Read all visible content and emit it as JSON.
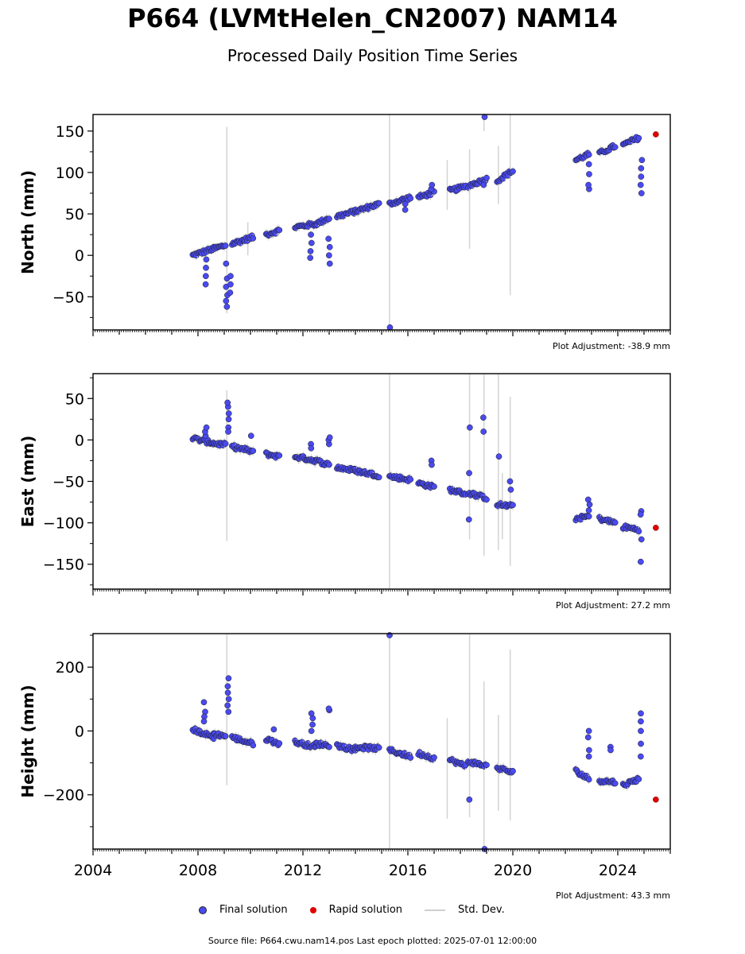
{
  "title": "P664 (LVMtHelen_CN2007) NAM14",
  "subtitle": "Processed Daily Position Time Series",
  "legend": {
    "final": "Final solution",
    "rapid": "Rapid solution",
    "std": "Std. Dev."
  },
  "footer": "Source file: P664.cwu.nam14.pos  Last epoch plotted: 2025-07-01 12:00:00",
  "colors": {
    "final": "#4a4af0",
    "rapid": "#e00000",
    "std_dev": "#d3d3d3"
  },
  "chart_data": [
    {
      "type": "scatter",
      "ylabel": "North (mm)",
      "adjustment": "Plot Adjustment: -38.9 mm",
      "xlim": [
        2004.0,
        2026.0
      ],
      "ylim": [
        -90,
        170
      ],
      "yticks": [
        -50,
        0,
        50,
        100,
        150
      ],
      "yticklabels": [
        "−50",
        "0",
        "50",
        "100",
        "150"
      ],
      "segments": [
        {
          "x": [
            2007.8,
            2008.6
          ],
          "y": [
            0,
            8
          ]
        },
        {
          "x": [
            2008.6,
            2009.05
          ],
          "y": [
            8,
            12
          ]
        },
        {
          "x": [
            2009.3,
            2010.1
          ],
          "y": [
            14,
            22
          ]
        },
        {
          "x": [
            2010.6,
            2011.1
          ],
          "y": [
            25,
            30
          ]
        },
        {
          "x": [
            2011.7,
            2012.5
          ],
          "y": [
            34,
            38
          ]
        },
        {
          "x": [
            2012.5,
            2013.0
          ],
          "y": [
            38,
            45
          ]
        },
        {
          "x": [
            2013.3,
            2014.0
          ],
          "y": [
            47,
            53
          ]
        },
        {
          "x": [
            2014.0,
            2014.9
          ],
          "y": [
            53,
            62
          ]
        },
        {
          "x": [
            2015.3,
            2016.1
          ],
          "y": [
            62,
            70
          ]
        },
        {
          "x": [
            2016.4,
            2017.0
          ],
          "y": [
            70,
            76
          ]
        },
        {
          "x": [
            2017.6,
            2018.2
          ],
          "y": [
            78,
            83
          ]
        },
        {
          "x": [
            2018.3,
            2019.0
          ],
          "y": [
            84,
            92
          ]
        },
        {
          "x": [
            2019.4,
            2020.0
          ],
          "y": [
            90,
            102
          ]
        },
        {
          "x": [
            2022.4,
            2022.9
          ],
          "y": [
            115,
            122
          ]
        },
        {
          "x": [
            2023.3,
            2023.9
          ],
          "y": [
            123,
            132
          ]
        },
        {
          "x": [
            2024.2,
            2024.8
          ],
          "y": [
            133,
            142
          ]
        }
      ],
      "outliers": [
        {
          "x": 2008.3,
          "y": [
            -35,
            -25,
            -15,
            -5
          ]
        },
        {
          "x": 2009.1,
          "y": [
            -62,
            -55,
            -48,
            -38,
            -28,
            -10
          ]
        },
        {
          "x": 2009.25,
          "y": [
            -25,
            -35,
            -45
          ]
        },
        {
          "x": 2012.3,
          "y": [
            -3,
            5,
            15,
            25
          ]
        },
        {
          "x": 2013.0,
          "y": [
            -10,
            0,
            10,
            20
          ]
        },
        {
          "x": 2015.3,
          "y": [
            -87
          ]
        },
        {
          "x": 2015.9,
          "y": [
            55,
            62
          ]
        },
        {
          "x": 2016.9,
          "y": [
            80,
            85
          ]
        },
        {
          "x": 2018.9,
          "y": [
            167,
            85
          ]
        },
        {
          "x": 2022.9,
          "y": [
            80,
            85,
            98,
            110
          ]
        },
        {
          "x": 2024.9,
          "y": [
            75,
            85,
            95,
            105,
            115
          ]
        }
      ],
      "stddev": [
        {
          "x": 2009.1,
          "y": [
            -70,
            155
          ]
        },
        {
          "x": 2015.3,
          "y": [
            -90,
            170
          ]
        },
        {
          "x": 2018.35,
          "y": [
            8,
            128
          ]
        },
        {
          "x": 2018.9,
          "y": [
            150,
            170
          ]
        },
        {
          "x": 2019.45,
          "y": [
            62,
            132
          ]
        },
        {
          "x": 2019.9,
          "y": [
            -48,
            170
          ]
        },
        {
          "x": 2017.5,
          "y": [
            55,
            115
          ]
        },
        {
          "x": 2009.9,
          "y": [
            0,
            40
          ]
        }
      ],
      "rapid": [
        {
          "x": 2025.45,
          "y": 146
        }
      ]
    },
    {
      "type": "scatter",
      "ylabel": "East (mm)",
      "adjustment": "Plot Adjustment: 27.2 mm",
      "xlim": [
        2004.0,
        2026.0
      ],
      "ylim": [
        -180,
        80
      ],
      "yticks": [
        -150,
        -100,
        -50,
        0,
        50
      ],
      "yticklabels": [
        "−150",
        "−100",
        "−50",
        "0",
        "50"
      ],
      "segments": [
        {
          "x": [
            2007.8,
            2008.6
          ],
          "y": [
            2,
            -4
          ]
        },
        {
          "x": [
            2008.6,
            2009.05
          ],
          "y": [
            -4,
            -6
          ]
        },
        {
          "x": [
            2009.3,
            2010.1
          ],
          "y": [
            -8,
            -14
          ]
        },
        {
          "x": [
            2010.6,
            2011.1
          ],
          "y": [
            -17,
            -20
          ]
        },
        {
          "x": [
            2011.7,
            2012.5
          ],
          "y": [
            -20,
            -25
          ]
        },
        {
          "x": [
            2012.5,
            2013.0
          ],
          "y": [
            -25,
            -30
          ]
        },
        {
          "x": [
            2013.3,
            2014.0
          ],
          "y": [
            -33,
            -37
          ]
        },
        {
          "x": [
            2014.0,
            2014.9
          ],
          "y": [
            -37,
            -43
          ]
        },
        {
          "x": [
            2015.3,
            2016.1
          ],
          "y": [
            -44,
            -48
          ]
        },
        {
          "x": [
            2016.4,
            2017.0
          ],
          "y": [
            -52,
            -57
          ]
        },
        {
          "x": [
            2017.6,
            2018.2
          ],
          "y": [
            -60,
            -65
          ]
        },
        {
          "x": [
            2018.3,
            2019.0
          ],
          "y": [
            -64,
            -70
          ]
        },
        {
          "x": [
            2019.4,
            2020.0
          ],
          "y": [
            -78,
            -80
          ]
        },
        {
          "x": [
            2022.4,
            2022.9
          ],
          "y": [
            -95,
            -92
          ]
        },
        {
          "x": [
            2023.3,
            2023.9
          ],
          "y": [
            -95,
            -100
          ]
        },
        {
          "x": [
            2024.2,
            2024.8
          ],
          "y": [
            -105,
            -108
          ]
        }
      ],
      "outliers": [
        {
          "x": 2008.3,
          "y": [
            5,
            10,
            15
          ]
        },
        {
          "x": 2009.15,
          "y": [
            15,
            25,
            32,
            40,
            45,
            10
          ]
        },
        {
          "x": 2010.0,
          "y": [
            5
          ]
        },
        {
          "x": 2012.3,
          "y": [
            -5,
            -10
          ]
        },
        {
          "x": 2013.0,
          "y": [
            -5,
            0,
            3
          ]
        },
        {
          "x": 2016.9,
          "y": [
            -25,
            -30
          ]
        },
        {
          "x": 2018.35,
          "y": [
            15,
            -40,
            -96
          ]
        },
        {
          "x": 2018.9,
          "y": [
            27,
            10
          ]
        },
        {
          "x": 2019.45,
          "y": [
            -20
          ]
        },
        {
          "x": 2019.9,
          "y": [
            -50,
            -60
          ]
        },
        {
          "x": 2022.9,
          "y": [
            -72,
            -78,
            -85
          ]
        },
        {
          "x": 2024.9,
          "y": [
            -86,
            -90,
            -120,
            -147
          ]
        }
      ],
      "stddev": [
        {
          "x": 2009.1,
          "y": [
            -122,
            60
          ]
        },
        {
          "x": 2015.3,
          "y": [
            -180,
            80
          ]
        },
        {
          "x": 2018.35,
          "y": [
            -120,
            80
          ]
        },
        {
          "x": 2018.9,
          "y": [
            -140,
            80
          ]
        },
        {
          "x": 2019.45,
          "y": [
            -133,
            80
          ]
        },
        {
          "x": 2019.9,
          "y": [
            -152,
            52
          ]
        },
        {
          "x": 2019.6,
          "y": [
            -120,
            -40
          ]
        }
      ],
      "rapid": [
        {
          "x": 2025.45,
          "y": -106
        }
      ]
    },
    {
      "type": "scatter",
      "ylabel": "Height (mm)",
      "adjustment": "Plot Adjustment: 43.3 mm",
      "xlim": [
        2004.0,
        2026.0
      ],
      "ylim": [
        -370,
        305
      ],
      "yticks": [
        -200,
        0,
        200
      ],
      "yticklabels": [
        "−200",
        "0",
        "200"
      ],
      "xticks": [
        2004,
        2008,
        2012,
        2016,
        2020,
        2024
      ],
      "xticklabels": [
        "2004",
        "2008",
        "2012",
        "2016",
        "2020",
        "2024"
      ],
      "segments": [
        {
          "x": [
            2007.8,
            2008.6
          ],
          "y": [
            5,
            -20
          ]
        },
        {
          "x": [
            2008.6,
            2009.05
          ],
          "y": [
            -10,
            -15
          ]
        },
        {
          "x": [
            2009.3,
            2010.1
          ],
          "y": [
            -20,
            -40
          ]
        },
        {
          "x": [
            2010.6,
            2011.1
          ],
          "y": [
            -25,
            -40
          ]
        },
        {
          "x": [
            2011.7,
            2012.5
          ],
          "y": [
            -35,
            -50
          ]
        },
        {
          "x": [
            2012.5,
            2013.0
          ],
          "y": [
            -40,
            -45
          ]
        },
        {
          "x": [
            2013.3,
            2014.0
          ],
          "y": [
            -45,
            -60
          ]
        },
        {
          "x": [
            2014.0,
            2014.9
          ],
          "y": [
            -50,
            -55
          ]
        },
        {
          "x": [
            2015.3,
            2016.1
          ],
          "y": [
            -60,
            -80
          ]
        },
        {
          "x": [
            2016.4,
            2017.0
          ],
          "y": [
            -70,
            -85
          ]
        },
        {
          "x": [
            2017.6,
            2018.2
          ],
          "y": [
            -90,
            -110
          ]
        },
        {
          "x": [
            2018.3,
            2019.0
          ],
          "y": [
            -95,
            -110
          ]
        },
        {
          "x": [
            2019.4,
            2020.0
          ],
          "y": [
            -115,
            -130
          ]
        },
        {
          "x": [
            2022.4,
            2022.9
          ],
          "y": [
            -125,
            -150
          ]
        },
        {
          "x": [
            2023.3,
            2023.9
          ],
          "y": [
            -155,
            -160
          ]
        },
        {
          "x": [
            2024.2,
            2024.8
          ],
          "y": [
            -170,
            -150
          ]
        }
      ],
      "outliers": [
        {
          "x": 2008.25,
          "y": [
            90,
            60,
            45,
            30
          ]
        },
        {
          "x": 2009.15,
          "y": [
            60,
            80,
            100,
            120,
            140,
            165
          ]
        },
        {
          "x": 2010.9,
          "y": [
            5
          ]
        },
        {
          "x": 2012.35,
          "y": [
            0,
            20,
            40,
            55
          ]
        },
        {
          "x": 2013.0,
          "y": [
            65,
            70
          ]
        },
        {
          "x": 2015.3,
          "y": [
            300
          ]
        },
        {
          "x": 2018.35,
          "y": [
            -215
          ]
        },
        {
          "x": 2018.9,
          "y": [
            -370
          ]
        },
        {
          "x": 2022.9,
          "y": [
            -80,
            -60,
            -20,
            0
          ]
        },
        {
          "x": 2023.7,
          "y": [
            -50,
            -60
          ]
        },
        {
          "x": 2024.9,
          "y": [
            -80,
            -40,
            0,
            30,
            55
          ]
        }
      ],
      "stddev": [
        {
          "x": 2009.1,
          "y": [
            -170,
            305
          ]
        },
        {
          "x": 2015.3,
          "y": [
            -370,
            305
          ]
        },
        {
          "x": 2018.35,
          "y": [
            -270,
            305
          ]
        },
        {
          "x": 2018.9,
          "y": [
            -370,
            155
          ]
        },
        {
          "x": 2019.45,
          "y": [
            -250,
            50
          ]
        },
        {
          "x": 2019.9,
          "y": [
            -280,
            255
          ]
        },
        {
          "x": 2017.5,
          "y": [
            -275,
            40
          ]
        }
      ],
      "rapid": [
        {
          "x": 2025.45,
          "y": -215
        }
      ]
    }
  ]
}
